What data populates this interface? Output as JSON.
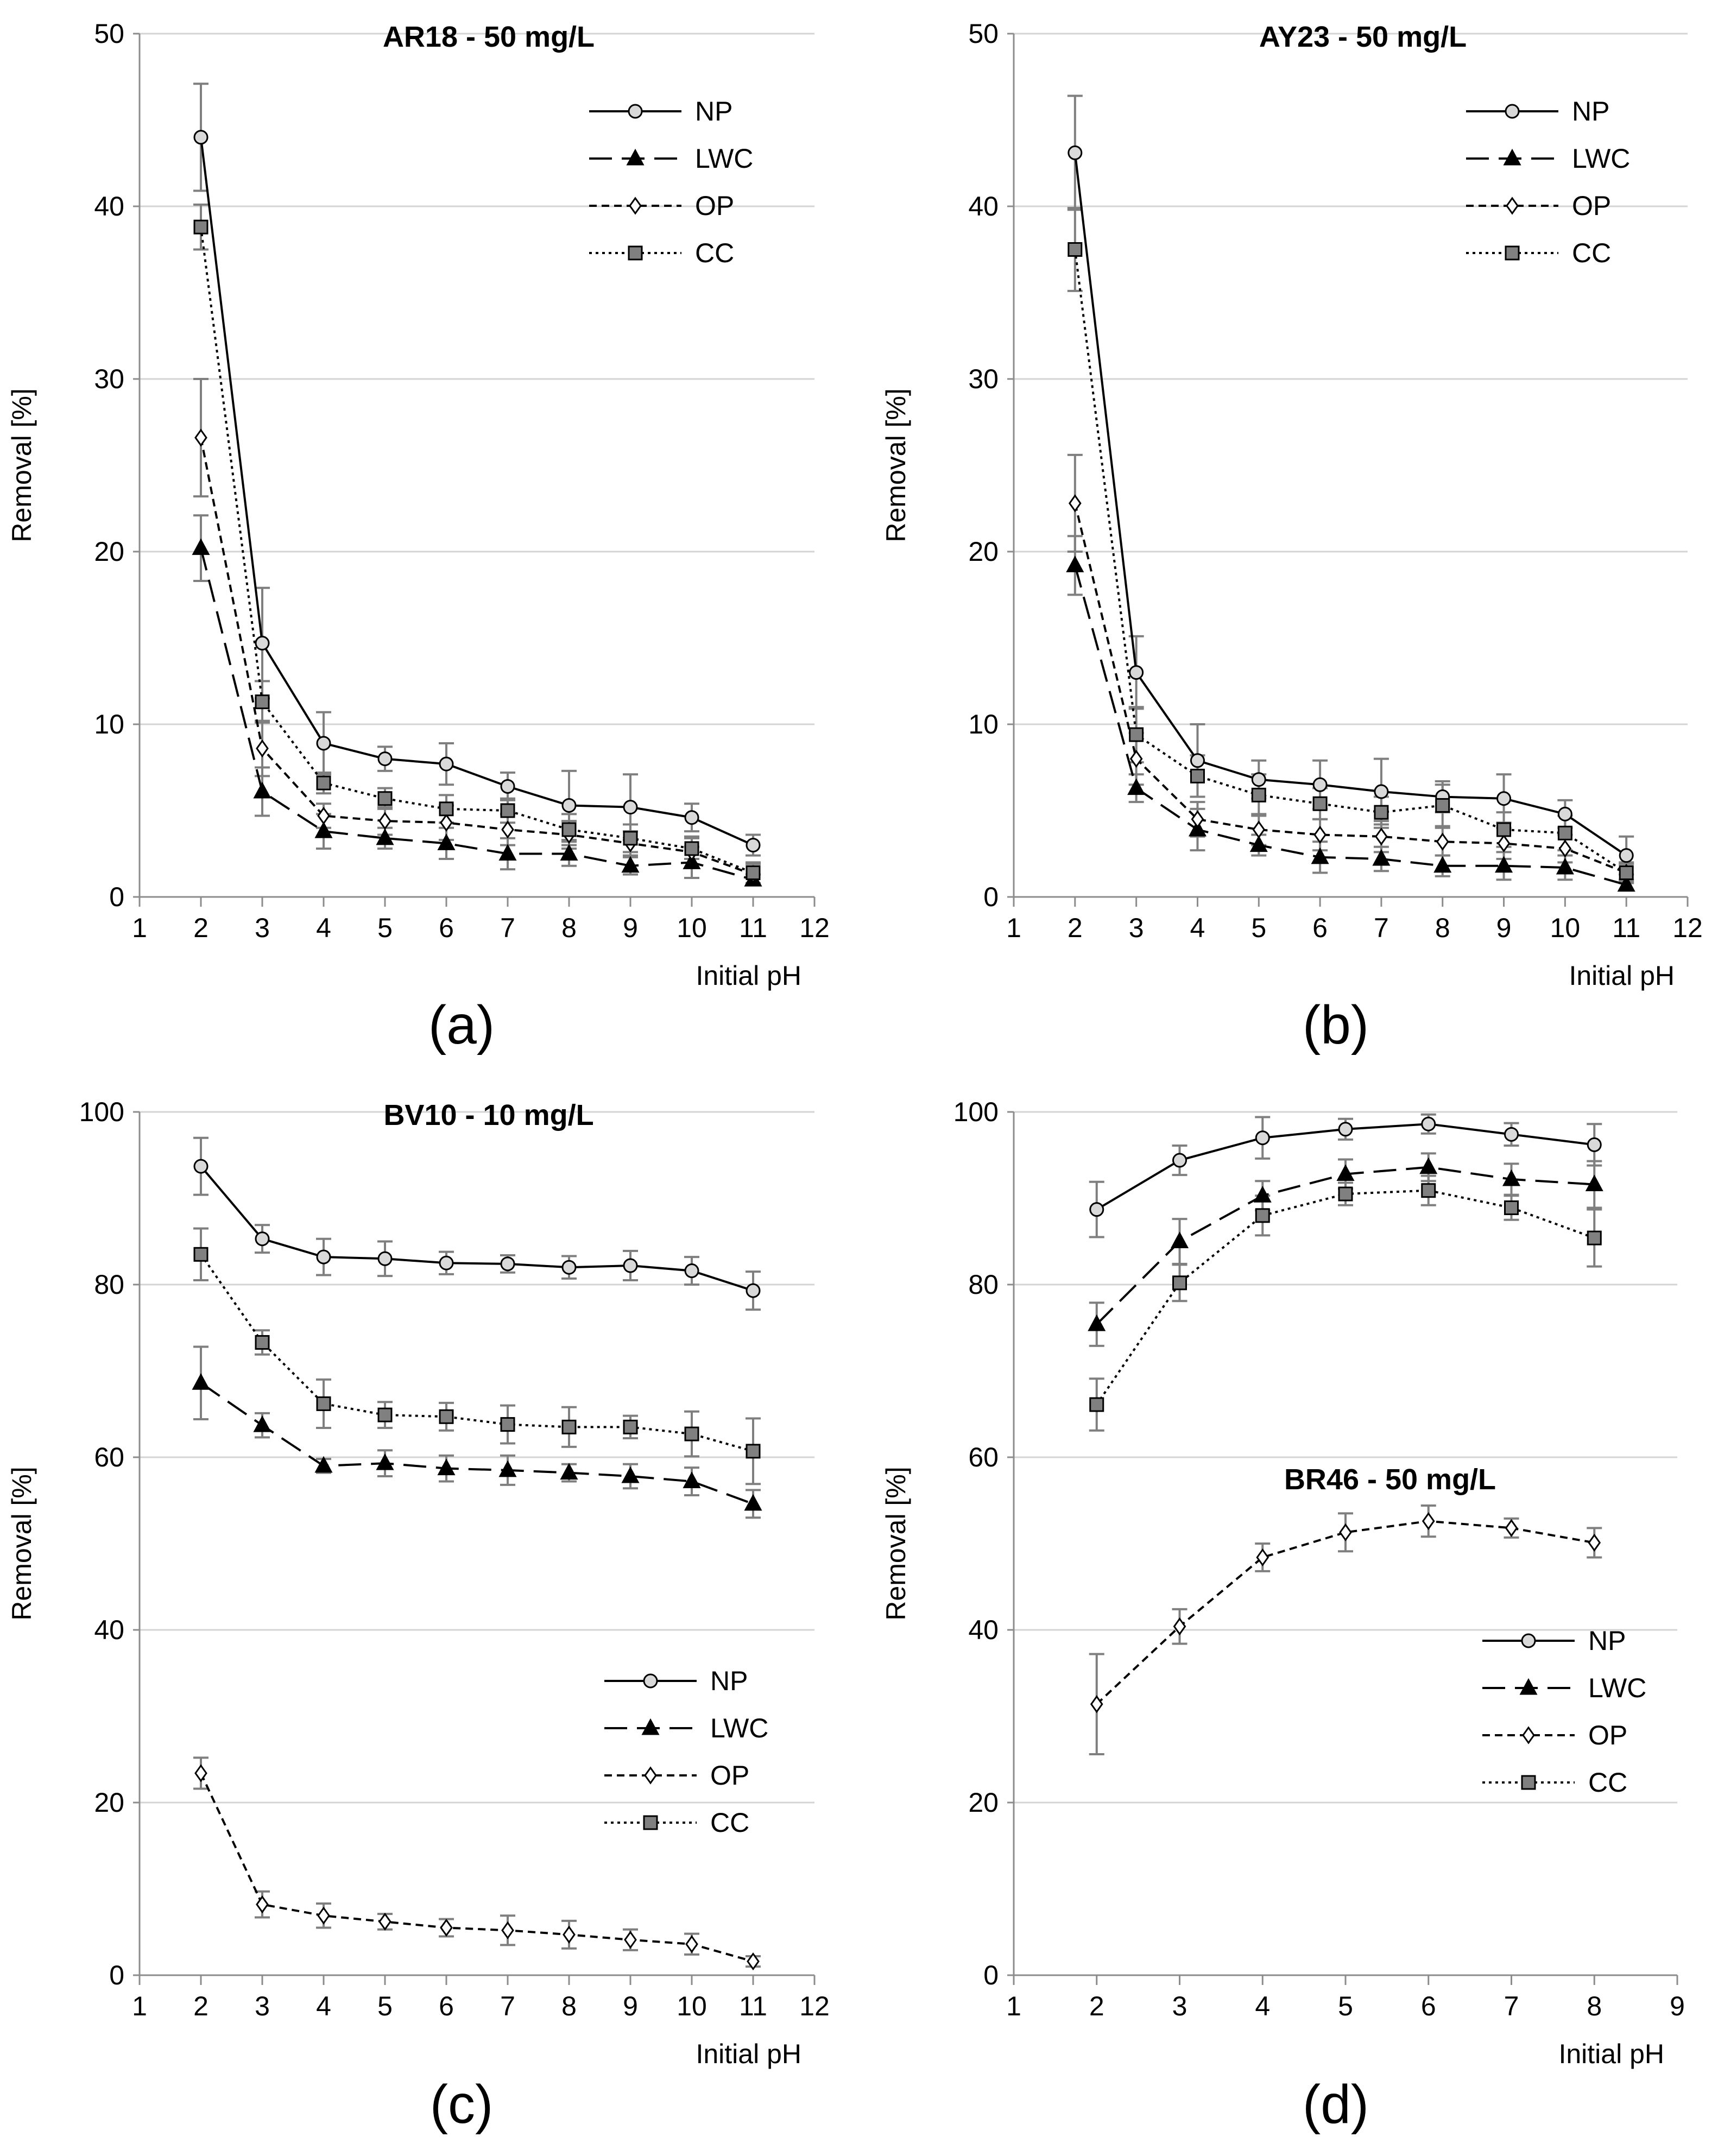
{
  "colors": {
    "axis": "#8c8c8c",
    "grid": "#d4d4d4",
    "text": "#000000",
    "errorbar": "#7f7f7f",
    "marker_np": "#d9d9d9",
    "marker_lwc": "#000000",
    "marker_op": "#ffffff",
    "marker_cc": "#808080"
  },
  "series_styles": {
    "NP": {
      "marker": "circle",
      "line": "solid"
    },
    "LWC": {
      "marker": "triangle",
      "line": "long-dash"
    },
    "OP": {
      "marker": "diamond",
      "line": "short-dash"
    },
    "CC": {
      "marker": "square",
      "line": "dotted"
    }
  },
  "chart_data": [
    {
      "id": "a",
      "type": "line",
      "title": "AR18 - 50 mg/L",
      "panel_label": "(a)",
      "xlabel": "Initial pH",
      "ylabel": "Removal [%]",
      "xlim": [
        1,
        12
      ],
      "ylim": [
        0,
        50
      ],
      "xticks": [
        1,
        2,
        3,
        4,
        5,
        6,
        7,
        8,
        9,
        10,
        11,
        12
      ],
      "yticks": [
        0,
        10,
        20,
        30,
        40,
        50
      ],
      "grid": "horizontal",
      "legend_position": "top-right",
      "x": [
        2,
        3,
        4,
        5,
        6,
        7,
        8,
        9,
        10,
        11
      ],
      "series": [
        {
          "name": "NP",
          "values": [
            44.0,
            14.7,
            8.9,
            8.0,
            7.7,
            6.4,
            5.3,
            5.2,
            4.6,
            3.0
          ],
          "errors": [
            3.1,
            3.2,
            1.8,
            0.7,
            1.2,
            0.8,
            2.0,
            1.9,
            0.8,
            0.6
          ]
        },
        {
          "name": "LWC",
          "values": [
            20.2,
            6.1,
            3.8,
            3.4,
            3.1,
            2.5,
            2.5,
            1.8,
            2.0,
            1.0
          ],
          "errors": [
            1.9,
            1.4,
            1.0,
            0.6,
            0.9,
            0.9,
            0.7,
            0.5,
            0.9,
            0.3
          ]
        },
        {
          "name": "OP",
          "values": [
            26.6,
            8.6,
            4.7,
            4.4,
            4.3,
            3.9,
            3.6,
            3.1,
            2.6,
            1.3
          ],
          "errors": [
            3.4,
            1.6,
            0.7,
            0.8,
            1.0,
            0.9,
            0.8,
            0.7,
            0.9,
            0.6
          ]
        },
        {
          "name": "CC",
          "values": [
            38.8,
            11.3,
            6.6,
            5.7,
            5.1,
            5.0,
            3.9,
            3.4,
            2.8,
            1.4
          ],
          "errors": [
            1.3,
            1.2,
            0.6,
            0.6,
            0.8,
            0.7,
            0.9,
            0.8,
            0.6,
            0.6
          ]
        }
      ]
    },
    {
      "id": "b",
      "type": "line",
      "title": "AY23 - 50 mg/L",
      "panel_label": "(b)",
      "xlabel": "Initial pH",
      "ylabel": "Removal [%]",
      "xlim": [
        1,
        12
      ],
      "ylim": [
        0,
        50
      ],
      "xticks": [
        1,
        2,
        3,
        4,
        5,
        6,
        7,
        8,
        9,
        10,
        11,
        12
      ],
      "yticks": [
        0,
        10,
        20,
        30,
        40,
        50
      ],
      "grid": "horizontal",
      "legend_position": "top-right",
      "x": [
        2,
        3,
        4,
        5,
        6,
        7,
        8,
        9,
        10,
        11
      ],
      "series": [
        {
          "name": "NP",
          "values": [
            43.1,
            13.0,
            7.9,
            6.8,
            6.5,
            6.1,
            5.8,
            5.7,
            4.8,
            2.4
          ],
          "errors": [
            3.3,
            2.1,
            2.1,
            1.1,
            1.4,
            1.9,
            0.9,
            1.4,
            0.8,
            1.1
          ]
        },
        {
          "name": "LWC",
          "values": [
            19.2,
            6.3,
            3.9,
            3.0,
            2.3,
            2.2,
            1.8,
            1.8,
            1.7,
            0.7
          ],
          "errors": [
            1.7,
            0.8,
            1.2,
            0.6,
            0.9,
            0.7,
            0.6,
            0.8,
            0.7,
            0.3
          ]
        },
        {
          "name": "OP",
          "values": [
            22.8,
            8.0,
            4.5,
            3.9,
            3.6,
            3.5,
            3.2,
            3.1,
            2.8,
            1.4
          ],
          "errors": [
            2.8,
            1.5,
            1.0,
            0.9,
            0.9,
            0.9,
            0.8,
            0.9,
            0.8,
            0.6
          ]
        },
        {
          "name": "CC",
          "values": [
            37.5,
            9.4,
            7.0,
            5.9,
            5.4,
            4.9,
            5.3,
            3.9,
            3.7,
            1.4
          ],
          "errors": [
            2.4,
            1.6,
            1.2,
            1.2,
            0.9,
            0.9,
            1.2,
            1.0,
            1.0,
            0.5
          ]
        }
      ]
    },
    {
      "id": "c",
      "type": "line",
      "title": "BV10 - 10 mg/L",
      "panel_label": "(c)",
      "xlabel": "Initial pH",
      "ylabel": "Removal [%]",
      "xlim": [
        1,
        12
      ],
      "ylim": [
        0,
        100
      ],
      "xticks": [
        1,
        2,
        3,
        4,
        5,
        6,
        7,
        8,
        9,
        10,
        11,
        12
      ],
      "yticks": [
        0,
        20,
        40,
        60,
        80,
        100
      ],
      "grid": "horizontal",
      "legend_position": "middle-right",
      "x": [
        2,
        3,
        4,
        5,
        6,
        7,
        8,
        9,
        10,
        11
      ],
      "series": [
        {
          "name": "NP",
          "values": [
            93.7,
            85.3,
            83.2,
            83.0,
            82.5,
            82.4,
            82.0,
            82.2,
            81.6,
            79.3
          ],
          "errors": [
            3.3,
            1.6,
            2.1,
            2.0,
            1.3,
            1.0,
            1.3,
            1.7,
            1.6,
            2.2
          ]
        },
        {
          "name": "LWC",
          "values": [
            68.6,
            63.7,
            59.0,
            59.3,
            58.7,
            58.5,
            58.2,
            57.8,
            57.2,
            54.6
          ],
          "errors": [
            4.2,
            1.4,
            0.8,
            1.5,
            1.5,
            1.7,
            1.0,
            1.4,
            1.6,
            1.6
          ]
        },
        {
          "name": "OP",
          "values": [
            23.4,
            8.2,
            6.9,
            6.2,
            5.5,
            5.2,
            4.7,
            4.1,
            3.6,
            1.6
          ],
          "errors": [
            1.8,
            1.5,
            1.4,
            0.9,
            1.0,
            1.7,
            1.6,
            1.2,
            1.2,
            0.6
          ]
        },
        {
          "name": "CC",
          "values": [
            83.5,
            73.3,
            66.2,
            64.9,
            64.7,
            63.8,
            63.5,
            63.5,
            62.7,
            60.7
          ],
          "errors": [
            3.0,
            1.4,
            2.8,
            1.5,
            1.6,
            2.2,
            2.3,
            1.3,
            2.6,
            3.8
          ]
        }
      ]
    },
    {
      "id": "d",
      "type": "line",
      "title": "BR46 - 50 mg/L",
      "panel_label": "(d)",
      "xlabel": "Initial pH",
      "ylabel": "Removal [%]",
      "xlim": [
        1,
        9
      ],
      "ylim": [
        0,
        100
      ],
      "xticks": [
        1,
        2,
        3,
        4,
        5,
        6,
        7,
        8,
        9
      ],
      "yticks": [
        0,
        20,
        40,
        60,
        80,
        100
      ],
      "grid": "horizontal",
      "legend_position": "bottom-right",
      "x": [
        2,
        3,
        4,
        5,
        6,
        7,
        8
      ],
      "series": [
        {
          "name": "NP",
          "values": [
            88.7,
            94.4,
            97.0,
            98.0,
            98.6,
            97.4,
            96.2
          ],
          "errors": [
            3.2,
            1.7,
            2.4,
            1.2,
            1.1,
            1.3,
            2.4
          ]
        },
        {
          "name": "LWC",
          "values": [
            75.4,
            85.0,
            90.3,
            92.8,
            93.6,
            92.2,
            91.6
          ],
          "errors": [
            2.5,
            2.6,
            1.7,
            1.7,
            1.6,
            1.8,
            2.7
          ]
        },
        {
          "name": "OP",
          "values": [
            31.4,
            40.4,
            48.4,
            51.3,
            52.6,
            51.8,
            50.1
          ],
          "errors": [
            5.8,
            2.0,
            1.6,
            2.2,
            1.8,
            1.1,
            1.7
          ]
        },
        {
          "name": "CC",
          "values": [
            66.1,
            80.2,
            88.0,
            90.5,
            90.9,
            88.9,
            85.4
          ],
          "errors": [
            3.0,
            2.1,
            2.3,
            1.3,
            1.7,
            1.4,
            3.3
          ]
        }
      ]
    }
  ]
}
